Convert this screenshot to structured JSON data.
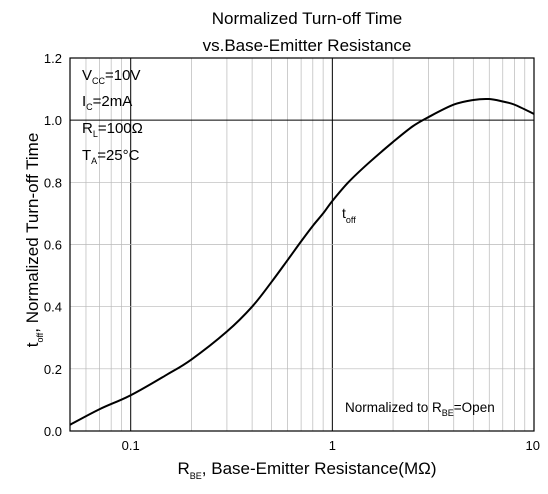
{
  "chart_data": {
    "type": "line",
    "title": "Normalized Turn-off Time",
    "subtitle": "vs.Base-Emitter Resistance",
    "xlabel": {
      "main": "R",
      "sub": "BE",
      "rest": ", Base-Emitter Resistance(MΩ)"
    },
    "ylabel": {
      "main": "t",
      "sub": "off",
      "rest": ", Normalized Turn-off Time"
    },
    "x_scale": "log",
    "xlim": [
      0.05,
      10
    ],
    "ylim": [
      0,
      1.2
    ],
    "x_ticks": [
      {
        "value": 0.1,
        "label": "0.1"
      },
      {
        "value": 1,
        "label": "1"
      },
      {
        "value": 10,
        "label": "10"
      }
    ],
    "y_ticks": [
      {
        "value": 0.0,
        "label": "0.0"
      },
      {
        "value": 0.2,
        "label": "0.2"
      },
      {
        "value": 0.4,
        "label": "0.4"
      },
      {
        "value": 0.6,
        "label": "0.6"
      },
      {
        "value": 0.8,
        "label": "0.8"
      },
      {
        "value": 1.0,
        "label": "1.0"
      },
      {
        "value": 1.2,
        "label": "1.2"
      }
    ],
    "grid": true,
    "series": [
      {
        "x": [
          0.05,
          0.07,
          0.1,
          0.15,
          0.2,
          0.3,
          0.4,
          0.5,
          0.6,
          0.7,
          0.8,
          0.9,
          1.0,
          1.2,
          1.5,
          2.0,
          2.5,
          3.0,
          4.0,
          5.0,
          6.0,
          7.0,
          8.0,
          10.0
        ],
        "y": [
          0.02,
          0.07,
          0.115,
          0.18,
          0.23,
          0.32,
          0.4,
          0.48,
          0.55,
          0.61,
          0.66,
          0.7,
          0.74,
          0.8,
          0.86,
          0.93,
          0.98,
          1.01,
          1.05,
          1.065,
          1.068,
          1.06,
          1.05,
          1.02
        ]
      }
    ],
    "curve_label": {
      "main": "t",
      "sub": "off"
    },
    "conditions": [
      {
        "main": "V",
        "sub": "CC",
        "rest": "=10V"
      },
      {
        "main": "I",
        "sub": "C",
        "rest": "=2mA"
      },
      {
        "main": "R",
        "sub": "L",
        "rest": "=100Ω"
      },
      {
        "main": "T",
        "sub": "A",
        "rest": "=25°C"
      }
    ],
    "note": {
      "main": "Normalized to R",
      "sub": "BE",
      "rest": "=Open"
    }
  }
}
